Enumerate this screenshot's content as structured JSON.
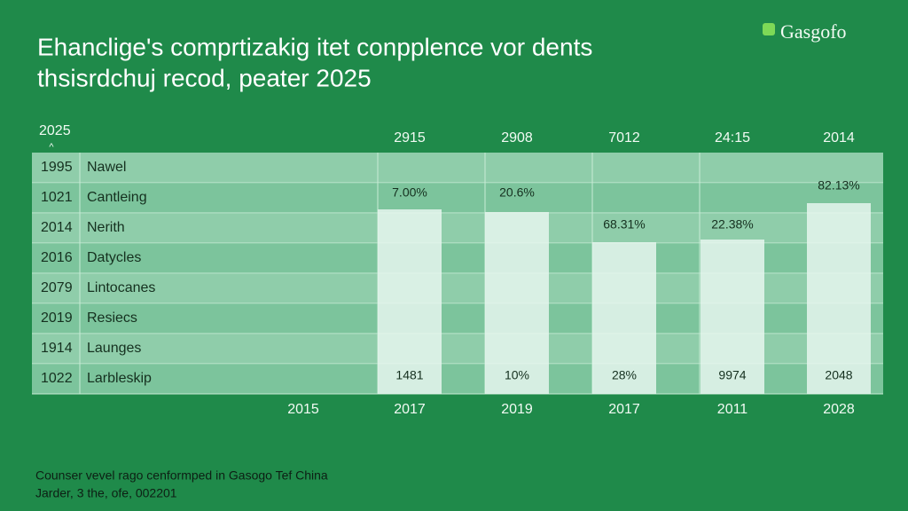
{
  "header": {
    "title_lines": [
      "Ehanclige's comprtizakig itet conpplence vor dents",
      "thsisrdchuj recod, peater 2025"
    ],
    "logo": "Gasgofo"
  },
  "table": {
    "corner": "2025",
    "column_headers": [
      "2915",
      "2908",
      "7012",
      "24:15",
      "2014"
    ],
    "rows": [
      [
        "1995",
        "Nawel"
      ],
      [
        "1021",
        "Cantleing"
      ],
      [
        "2014",
        "Nerith"
      ],
      [
        "2016",
        "Datycles"
      ],
      [
        "2079",
        "Lintocanes"
      ],
      [
        "2019",
        "Resiecs"
      ],
      [
        "1914",
        "Launges"
      ],
      [
        "1022",
        "Larbleskip"
      ]
    ],
    "bar_top_labels": [
      "7.00%",
      "20.6%",
      "68.31%",
      "22.38%",
      "82.13%"
    ],
    "bar_bottom_labels": [
      "1481",
      "10%",
      "28%",
      "9974",
      "2048"
    ],
    "x_labels": [
      "2015",
      "2017",
      "2019",
      "2017",
      "2011",
      "2028"
    ]
  },
  "footer": {
    "lines": [
      "Counser vevel rago cenformped in Gasogo Tef China",
      "Jarder, 3 the, ofe, 002201"
    ]
  }
}
